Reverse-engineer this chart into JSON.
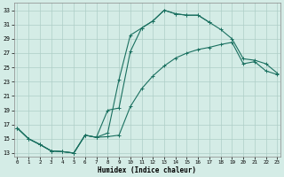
{
  "xlabel": "Humidex (Indice chaleur)",
  "bg_color": "#d4ece6",
  "grid_color": "#aecec7",
  "line_color": "#1a7060",
  "xticks": [
    0,
    1,
    2,
    3,
    4,
    5,
    6,
    7,
    8,
    9,
    10,
    11,
    12,
    13,
    14,
    15,
    16,
    17,
    18,
    19,
    20,
    21,
    22,
    23
  ],
  "yticks": [
    13,
    15,
    17,
    19,
    21,
    23,
    25,
    27,
    29,
    31,
    33
  ],
  "xlim": [
    -0.3,
    23.3
  ],
  "ylim": [
    12.5,
    34.0
  ],
  "curve1_x": [
    0,
    1,
    2,
    3,
    4,
    5,
    6,
    7,
    8,
    9,
    10,
    11,
    12,
    13,
    14,
    15,
    16,
    17
  ],
  "curve1_y": [
    16.5,
    15.0,
    14.2,
    13.3,
    13.2,
    13.0,
    15.5,
    15.2,
    15.8,
    23.3,
    29.5,
    30.5,
    31.5,
    33.0,
    32.5,
    32.3,
    32.3,
    31.3
  ],
  "curve2_x": [
    0,
    1,
    2,
    3,
    4,
    5,
    6,
    7,
    8,
    9,
    10,
    11,
    12,
    13,
    14,
    15,
    16,
    17,
    18,
    19,
    20,
    21,
    22,
    23
  ],
  "curve2_y": [
    16.5,
    15.0,
    14.2,
    13.3,
    13.2,
    13.0,
    15.5,
    15.2,
    19.0,
    19.3,
    27.2,
    30.5,
    31.5,
    33.0,
    32.5,
    32.3,
    32.3,
    31.3,
    30.3,
    29.0,
    26.2,
    26.0,
    25.5,
    24.2
  ],
  "curve3_x": [
    0,
    1,
    2,
    3,
    4,
    5,
    6,
    7,
    8,
    9,
    10,
    11,
    12,
    13,
    14,
    15,
    16,
    17,
    18,
    19,
    20,
    21,
    22,
    23
  ],
  "curve3_y": [
    16.5,
    15.0,
    14.2,
    13.3,
    13.2,
    13.0,
    15.5,
    15.2,
    15.3,
    15.5,
    19.5,
    22.0,
    23.8,
    25.2,
    26.3,
    27.0,
    27.5,
    27.8,
    28.2,
    28.5,
    25.5,
    25.8,
    24.5,
    24.0
  ]
}
